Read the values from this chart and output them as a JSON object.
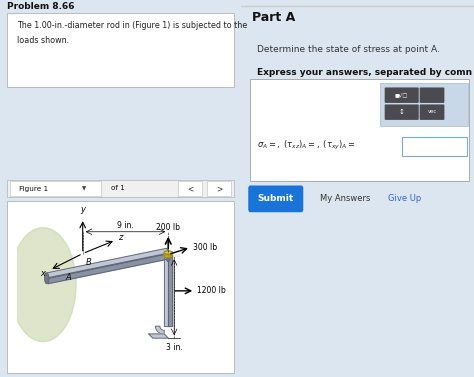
{
  "bg_color": "#dce6f0",
  "left_panel_bg": "#dce6f0",
  "right_panel_bg": "#ffffff",
  "problem_title": "Problem 8.66",
  "problem_text_line1": "The 1.00-in.-diameter rod in (Figure 1) is subjected to the",
  "problem_text_line2": "loads shown.",
  "figure_label": "Figure 1",
  "figure_of": "of 1",
  "part_a_title": "Part A",
  "part_a_desc": "Determine the state of stress at point A.",
  "part_a_express": "Express your answers, separated by comn",
  "submit_label": "Submit",
  "my_answers_label": "My Answers",
  "give_up_label": "Give Up",
  "submit_color": "#1a73d9",
  "give_up_color": "#3366cc",
  "divider_color": "#cccccc",
  "box_border_color": "#bbbbbb",
  "glow_color": "#c8d4a8",
  "rod_top_color": "#c0c8d5",
  "rod_side_color": "#8892a5",
  "rod_dark_color": "#707888",
  "rod_edge_color": "#606070",
  "gold_top": "#e8c830",
  "gold_side": "#c8a820",
  "fig_nav_bg": "#f0f0f0"
}
